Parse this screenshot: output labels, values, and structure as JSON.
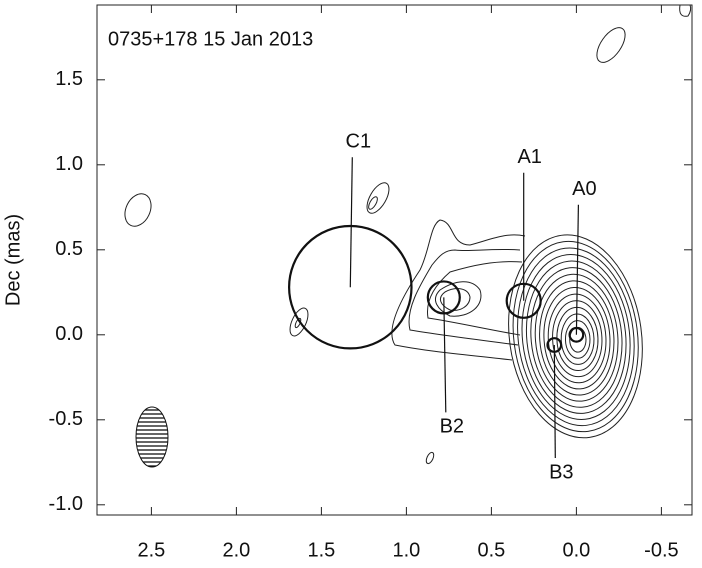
{
  "chart_data": {
    "type": "scatter",
    "title": "0735+178  15 Jan 2013",
    "y_label": "Dec (mas)",
    "labels": [
      "C1",
      "B2",
      "A1",
      "A0",
      "B3"
    ],
    "x": [
      1.33,
      0.78,
      0.31,
      0.0,
      0.13
    ],
    "values": [
      0.28,
      0.22,
      0.2,
      0.0,
      -0.06
    ],
    "sizes": [
      0.36,
      0.094,
      0.1,
      0.04,
      0.04
    ],
    "xlim": [
      2.82,
      -0.68
    ],
    "ylim": [
      -1.06,
      1.94
    ],
    "xticks": [
      2.5,
      {
        "value": 2,
        "label": "2.0"
      },
      1.5,
      {
        "value": 1,
        "label": "1.0"
      },
      0.5,
      {
        "value": 0,
        "label": "0.0"
      },
      -0.5
    ],
    "yticks": [
      1.5,
      {
        "value": 1,
        "label": "1.0"
      },
      0.5,
      {
        "value": 0,
        "label": "0.0"
      },
      -0.5,
      {
        "value": -1,
        "label": "-1.0"
      }
    ]
  }
}
